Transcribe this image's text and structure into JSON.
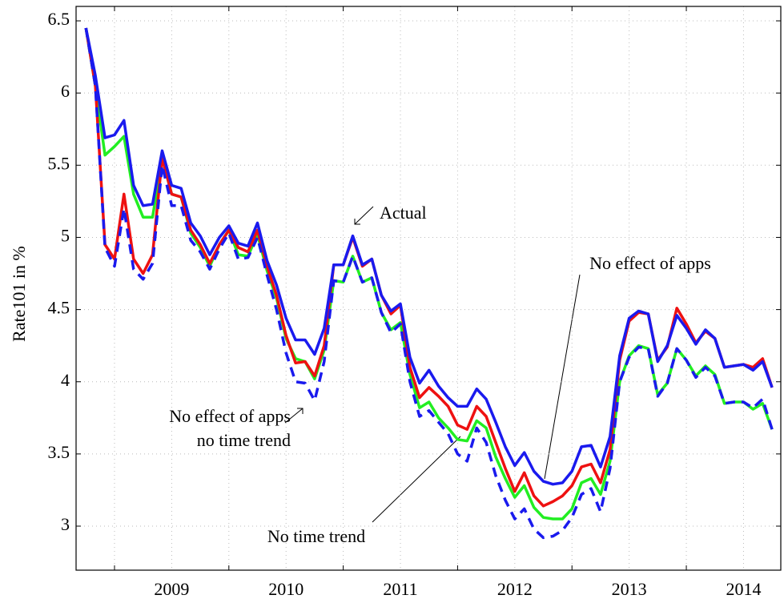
{
  "chart_data": {
    "type": "line",
    "y_label": "Rate101 in %",
    "annotations": [
      "Actual",
      "No effect of apps",
      "No time trend",
      "No effect of apps",
      "no time trend"
    ],
    "xlim": [
      2008.664,
      2014.826
    ],
    "ylim": [
      2.695,
      6.6
    ],
    "yticks": [
      3,
      3.5,
      4,
      4.5,
      5,
      5.5,
      6,
      6.5
    ],
    "xticks": [
      {
        "value": 2009.5,
        "label": "2009"
      },
      {
        "value": 2010.5,
        "label": "2010"
      },
      {
        "value": 2011.5,
        "label": "2011"
      },
      {
        "value": 2012.5,
        "label": "2012"
      },
      {
        "value": 2013.5,
        "label": "2013"
      },
      {
        "value": 2014.5,
        "label": "2014"
      }
    ],
    "xminorticks": [
      2009,
      2010,
      2011,
      2012,
      2013,
      2014
    ],
    "grid": true,
    "x": [
      2008.75,
      2008.833,
      2008.917,
      2009,
      2009.083,
      2009.167,
      2009.25,
      2009.333,
      2009.417,
      2009.5,
      2009.583,
      2009.667,
      2009.75,
      2009.833,
      2009.917,
      2010,
      2010.083,
      2010.167,
      2010.25,
      2010.333,
      2010.417,
      2010.5,
      2010.583,
      2010.667,
      2010.75,
      2010.833,
      2010.917,
      2011,
      2011.083,
      2011.167,
      2011.25,
      2011.333,
      2011.417,
      2011.5,
      2011.583,
      2011.667,
      2011.75,
      2011.833,
      2011.917,
      2012,
      2012.083,
      2012.167,
      2012.25,
      2012.333,
      2012.417,
      2012.5,
      2012.583,
      2012.667,
      2012.75,
      2012.833,
      2012.917,
      2013,
      2013.083,
      2013.167,
      2013.25,
      2013.333,
      2013.417,
      2013.5,
      2013.583,
      2013.667,
      2013.75,
      2013.833,
      2013.917,
      2014,
      2014.083,
      2014.167,
      2014.25,
      2014.333,
      2014.417,
      2014.5,
      2014.583,
      2014.667,
      2014.75
    ],
    "series": [
      {
        "color": "#22ee22",
        "dashed": false,
        "values": [
          6.45,
          6.05,
          5.57,
          5.63,
          5.7,
          5.3,
          5.14,
          5.14,
          5.55,
          5.3,
          5.28,
          5.03,
          4.93,
          4.8,
          4.95,
          5.05,
          4.88,
          4.87,
          5.02,
          4.77,
          4.58,
          4.3,
          4.16,
          4.14,
          4.02,
          4.22,
          4.7,
          4.69,
          4.87,
          4.69,
          4.72,
          4.48,
          4.36,
          4.41,
          4.05,
          3.82,
          3.86,
          3.75,
          3.68,
          3.6,
          3.59,
          3.73,
          3.68,
          3.48,
          3.33,
          3.2,
          3.28,
          3.13,
          3.06,
          3.05,
          3.05,
          3.12,
          3.3,
          3.33,
          3.22,
          3.45,
          4.0,
          4.18,
          4.25,
          4.23,
          3.91,
          3.99,
          4.23,
          4.15,
          4.04,
          4.11,
          4.05,
          3.85,
          3.86,
          3.86,
          3.81,
          3.85,
          3.67
        ]
      },
      {
        "color": "#ee1111",
        "dashed": false,
        "values": [
          6.45,
          6.05,
          4.95,
          4.85,
          5.3,
          4.85,
          4.75,
          4.88,
          5.55,
          5.3,
          5.28,
          5.05,
          4.95,
          4.82,
          4.95,
          5.05,
          4.93,
          4.9,
          5.05,
          4.8,
          4.6,
          4.32,
          4.13,
          4.14,
          4.04,
          4.25,
          4.81,
          4.81,
          5.0,
          4.8,
          4.85,
          4.6,
          4.47,
          4.53,
          4.1,
          3.89,
          3.96,
          3.9,
          3.83,
          3.7,
          3.67,
          3.83,
          3.76,
          3.58,
          3.4,
          3.24,
          3.37,
          3.21,
          3.14,
          3.17,
          3.21,
          3.28,
          3.41,
          3.43,
          3.3,
          3.53,
          4.15,
          4.42,
          4.48,
          4.47,
          4.15,
          4.24,
          4.51,
          4.4,
          4.27,
          4.35,
          4.3,
          4.1,
          4.11,
          4.12,
          4.1,
          4.16,
          3.96
        ]
      },
      {
        "color": "#1a1aee",
        "dashed": true,
        "values": [
          6.45,
          6.05,
          4.93,
          4.8,
          5.2,
          4.78,
          4.71,
          4.82,
          5.5,
          5.22,
          5.22,
          4.98,
          4.9,
          4.78,
          4.92,
          5.03,
          4.85,
          4.86,
          5.0,
          4.74,
          4.5,
          4.2,
          4.0,
          3.99,
          3.87,
          4.14,
          4.7,
          4.69,
          4.87,
          4.69,
          4.72,
          4.48,
          4.34,
          4.4,
          4.0,
          3.76,
          3.8,
          3.72,
          3.64,
          3.5,
          3.45,
          3.68,
          3.58,
          3.35,
          3.18,
          3.05,
          3.12,
          2.98,
          2.92,
          2.93,
          2.97,
          3.06,
          3.22,
          3.26,
          3.1,
          3.4,
          4.0,
          4.17,
          4.24,
          4.23,
          3.9,
          3.99,
          4.23,
          4.15,
          4.03,
          4.1,
          4.04,
          3.85,
          3.86,
          3.86,
          3.82,
          3.88,
          3.67
        ]
      },
      {
        "color": "#1a1aee",
        "dashed": false,
        "values": [
          6.45,
          6.12,
          5.69,
          5.71,
          5.81,
          5.36,
          5.22,
          5.23,
          5.6,
          5.36,
          5.34,
          5.1,
          5.01,
          4.88,
          5.0,
          5.08,
          4.96,
          4.94,
          5.1,
          4.84,
          4.67,
          4.44,
          4.29,
          4.29,
          4.19,
          4.37,
          4.81,
          4.81,
          5.01,
          4.81,
          4.85,
          4.6,
          4.49,
          4.54,
          4.17,
          3.99,
          4.08,
          3.97,
          3.89,
          3.83,
          3.83,
          3.95,
          3.88,
          3.72,
          3.55,
          3.42,
          3.51,
          3.38,
          3.31,
          3.29,
          3.3,
          3.38,
          3.55,
          3.56,
          3.41,
          3.62,
          4.18,
          4.44,
          4.49,
          4.47,
          4.14,
          4.25,
          4.46,
          4.37,
          4.26,
          4.36,
          4.3,
          4.1,
          4.11,
          4.12,
          4.08,
          4.14,
          3.96
        ]
      }
    ]
  }
}
